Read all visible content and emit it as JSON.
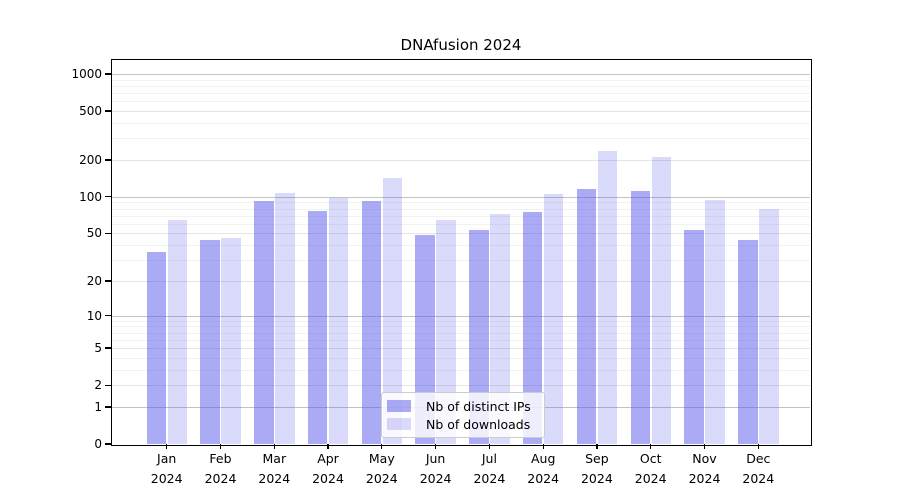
{
  "chart_data": {
    "type": "bar",
    "title": "DNAfusion 2024",
    "scale": "log1p",
    "grid": "on",
    "legend_position": "lower center",
    "xlabel": "",
    "ylabel": "",
    "ylim": [
      0,
      1270
    ],
    "y_ticks": [
      0,
      1,
      2,
      5,
      10,
      20,
      50,
      100,
      200,
      500,
      1000
    ],
    "categories": [
      "Jan",
      "Feb",
      "Mar",
      "Apr",
      "May",
      "Jun",
      "Jul",
      "Aug",
      "Sep",
      "Oct",
      "Nov",
      "Dec"
    ],
    "x_year": "2024",
    "series": [
      {
        "name": "Nb of distinct IPs",
        "color": "rgba(85,85,235,0.5)",
        "values": [
          35,
          44,
          93,
          76,
          92,
          49,
          53,
          75,
          117,
          112,
          53,
          44
        ]
      },
      {
        "name": "Nb of downloads",
        "color": "rgba(85,85,235,0.22)",
        "values": [
          65,
          46,
          107,
          97,
          144,
          64,
          73,
          106,
          235,
          213,
          95,
          79
        ]
      }
    ]
  }
}
